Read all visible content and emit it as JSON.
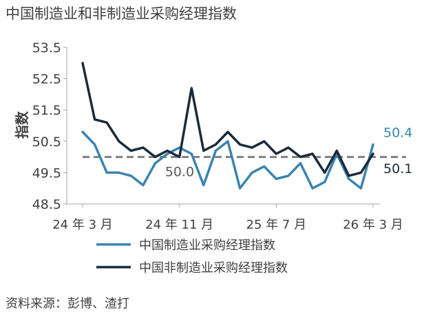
{
  "chart_data": {
    "type": "line",
    "title": "中国制造业和非制造业采购经理指数",
    "ylabel": "指数",
    "ylim": [
      48.5,
      53.5
    ],
    "yticks": [
      "53.5",
      "52.5",
      "51.5",
      "50.5",
      "49.5",
      "48.5"
    ],
    "xtick_labels": [
      "24 年 3 月",
      "24 年 11 月",
      "25 年 7 月",
      "26 年 3 月"
    ],
    "xtick_index": [
      0,
      8,
      16,
      24
    ],
    "reference_line": {
      "value": 50.0,
      "label": "50.0"
    },
    "series": [
      {
        "name": "中国制造业采购经理指数",
        "color": "#3a84b0",
        "end_label": "50.4",
        "values": [
          50.8,
          50.4,
          49.5,
          49.5,
          49.4,
          49.1,
          49.8,
          50.1,
          50.3,
          50.1,
          49.1,
          50.2,
          50.5,
          49.0,
          49.5,
          49.7,
          49.3,
          49.4,
          49.8,
          49.0,
          49.2,
          50.1,
          49.3,
          49.0,
          50.4
        ]
      },
      {
        "name": "中国非制造业采购经理指数",
        "color": "#1b2a3a",
        "end_label": "50.1",
        "values": [
          53.0,
          51.2,
          51.1,
          50.5,
          50.2,
          50.3,
          50.0,
          50.2,
          50.0,
          52.2,
          50.2,
          50.4,
          50.8,
          50.4,
          50.3,
          50.5,
          50.1,
          50.3,
          50.0,
          50.1,
          49.5,
          50.2,
          49.4,
          49.5,
          50.1
        ]
      }
    ],
    "grid": false,
    "legend_position": "bottom"
  },
  "source": "资料来源：彭博、渣打"
}
